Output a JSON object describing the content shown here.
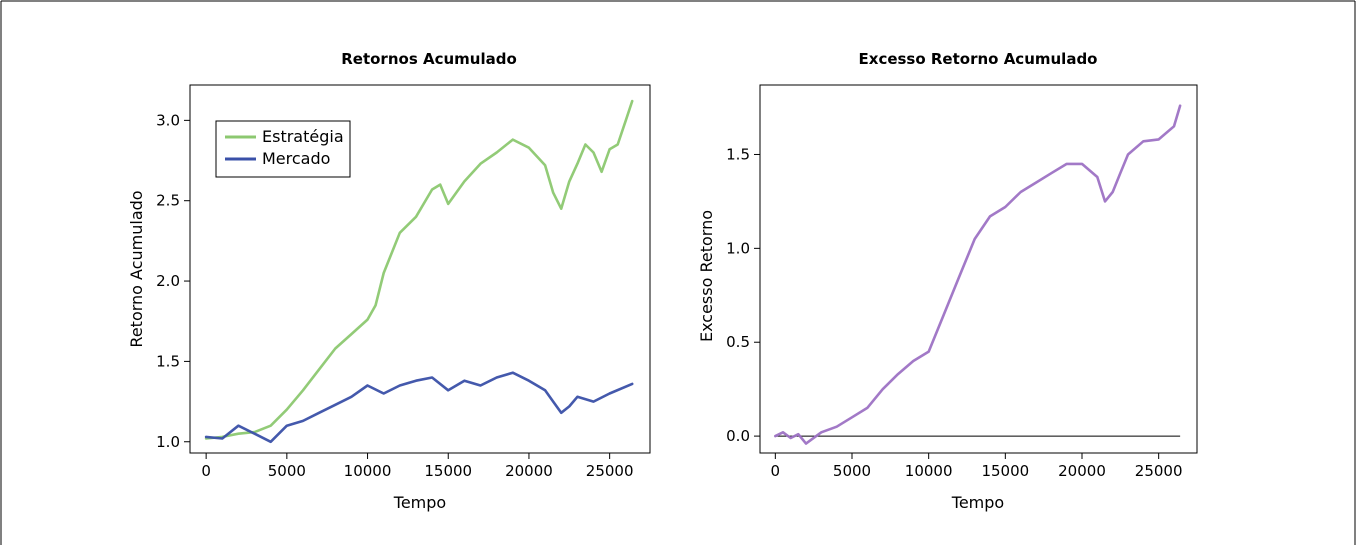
{
  "charts": [
    {
      "id": "left",
      "chart_data": {
        "type": "line",
        "title": "Retornos Acumulado",
        "xlabel": "Tempo",
        "ylabel": "Retorno Acumulado",
        "xlim": [
          -1000,
          27500
        ],
        "ylim": [
          0.93,
          3.22
        ],
        "xticks": [
          0,
          5000,
          10000,
          15000,
          20000,
          25000
        ],
        "yticks": [
          1.0,
          1.5,
          2.0,
          2.5,
          3.0
        ],
        "xtick_labels": [
          "0",
          "5000",
          "10000",
          "15000",
          "20000",
          "25000"
        ],
        "ytick_labels": [
          "1.0",
          "1.5",
          "2.0",
          "2.5",
          "3.0"
        ],
        "legend_position": "top-left",
        "series": [
          {
            "name": "Estratégia",
            "color": "#8cc870",
            "x": [
              0,
              1000,
              2000,
              3000,
              4000,
              5000,
              6000,
              7000,
              8000,
              9000,
              10000,
              10500,
              11000,
              12000,
              13000,
              14000,
              14500,
              15000,
              16000,
              17000,
              18000,
              19000,
              20000,
              21000,
              21500,
              22000,
              22500,
              23000,
              23500,
              24000,
              24500,
              25000,
              25500,
              26000,
              26400
            ],
            "y": [
              1.02,
              1.03,
              1.05,
              1.06,
              1.1,
              1.2,
              1.32,
              1.45,
              1.58,
              1.67,
              1.76,
              1.85,
              2.05,
              2.3,
              2.4,
              2.57,
              2.6,
              2.48,
              2.62,
              2.73,
              2.8,
              2.88,
              2.83,
              2.72,
              2.55,
              2.45,
              2.62,
              2.73,
              2.85,
              2.8,
              2.68,
              2.82,
              2.85,
              3.0,
              3.12
            ]
          },
          {
            "name": "Mercado",
            "color": "#3a50a8",
            "x": [
              0,
              1000,
              2000,
              3000,
              4000,
              5000,
              6000,
              7000,
              8000,
              9000,
              10000,
              11000,
              12000,
              13000,
              14000,
              15000,
              16000,
              17000,
              18000,
              19000,
              20000,
              21000,
              21500,
              22000,
              22500,
              23000,
              24000,
              25000,
              26400
            ],
            "y": [
              1.03,
              1.02,
              1.1,
              1.05,
              1.0,
              1.1,
              1.13,
              1.18,
              1.23,
              1.28,
              1.35,
              1.3,
              1.35,
              1.38,
              1.4,
              1.32,
              1.38,
              1.35,
              1.4,
              1.43,
              1.38,
              1.32,
              1.25,
              1.18,
              1.22,
              1.28,
              1.25,
              1.3,
              1.36
            ]
          }
        ]
      }
    },
    {
      "id": "right",
      "chart_data": {
        "type": "line",
        "title": "Excesso Retorno Acumulado",
        "xlabel": "Tempo",
        "ylabel": "Excesso Retorno",
        "xlim": [
          -1000,
          27500
        ],
        "ylim": [
          -0.09,
          1.87
        ],
        "xticks": [
          0,
          5000,
          10000,
          15000,
          20000,
          25000
        ],
        "yticks": [
          0.0,
          0.5,
          1.0,
          1.5
        ],
        "xtick_labels": [
          "0",
          "5000",
          "10000",
          "15000",
          "20000",
          "25000"
        ],
        "ytick_labels": [
          "0.0",
          "0.5",
          "1.0",
          "1.5"
        ],
        "hline": 0.0,
        "series": [
          {
            "color": "#9d72c4",
            "x": [
              0,
              500,
              1000,
              1500,
              2000,
              3000,
              4000,
              5000,
              6000,
              7000,
              8000,
              9000,
              10000,
              11000,
              12000,
              13000,
              14000,
              15000,
              16000,
              17000,
              18000,
              19000,
              20000,
              21000,
              21500,
              22000,
              22500,
              23000,
              24000,
              25000,
              26000,
              26400
            ],
            "y": [
              0.0,
              0.02,
              -0.01,
              0.01,
              -0.04,
              0.02,
              0.05,
              0.1,
              0.15,
              0.25,
              0.33,
              0.4,
              0.45,
              0.65,
              0.85,
              1.05,
              1.17,
              1.22,
              1.3,
              1.35,
              1.4,
              1.45,
              1.45,
              1.38,
              1.25,
              1.3,
              1.4,
              1.5,
              1.57,
              1.58,
              1.65,
              1.76
            ]
          }
        ]
      }
    }
  ]
}
